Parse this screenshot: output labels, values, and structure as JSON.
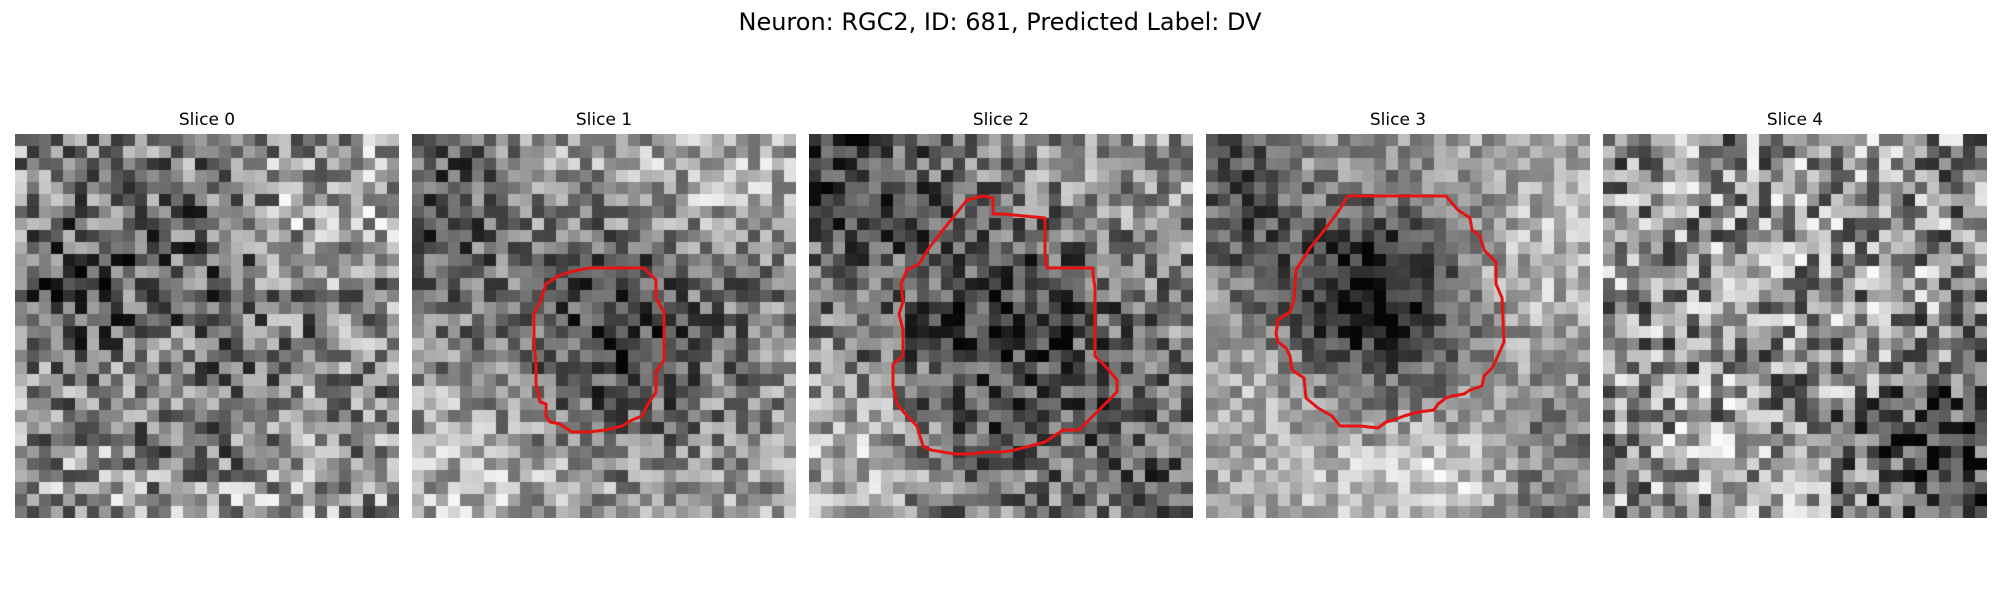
{
  "figure": {
    "title": "Neuron: RGC2, ID: 681, Predicted Label: DV"
  },
  "colors": {
    "contour": "#e51414",
    "background": "#ffffff"
  },
  "slices": [
    {
      "title": "Slice 0",
      "has_contour": false
    },
    {
      "title": "Slice 1",
      "has_contour": true
    },
    {
      "title": "Slice 2",
      "has_contour": true
    },
    {
      "title": "Slice 3",
      "has_contour": true
    },
    {
      "title": "Slice 4",
      "has_contour": false
    }
  ]
}
